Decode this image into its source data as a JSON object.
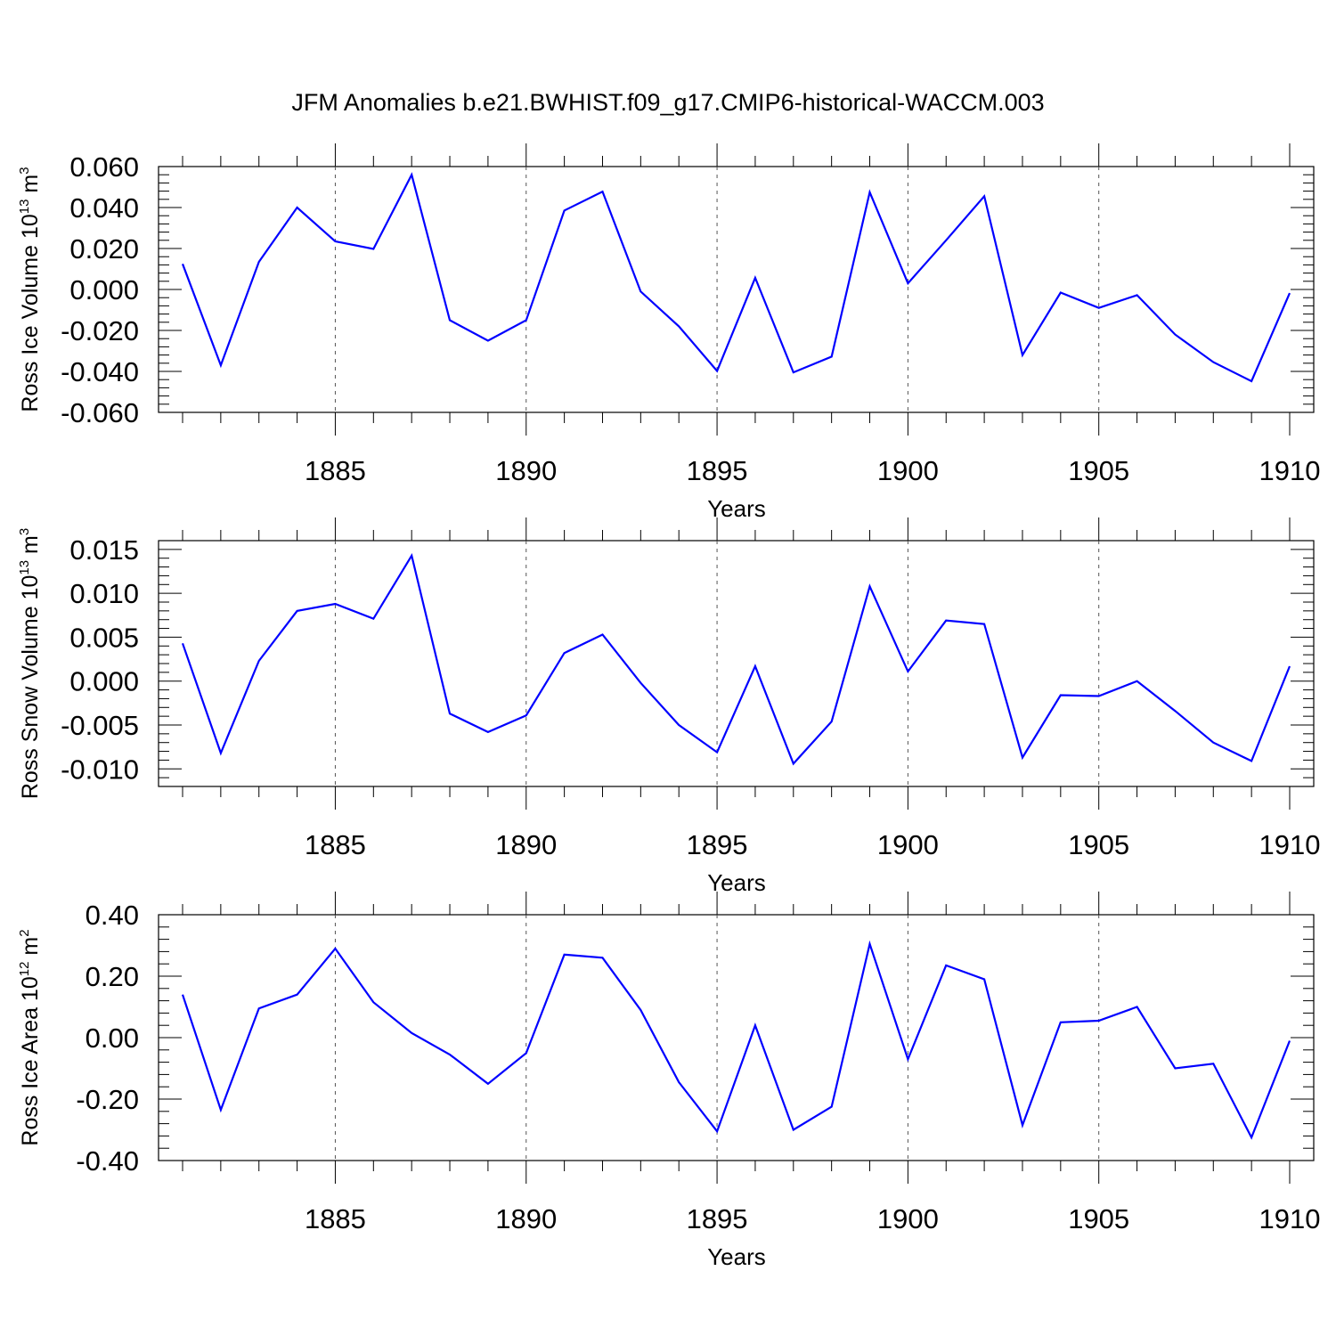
{
  "title": "JFM Anomalies b.e21.BWHIST.f09_g17.CMIP6-historical-WACCM.003",
  "line_color": "#0000ff",
  "chart_data": [
    {
      "type": "line",
      "ylabel": {
        "text": "Ross Ice Volume 10",
        "sup": "13",
        "unit": " m",
        "unit_sup": "3"
      },
      "xlabel": "Years",
      "xlim": [
        1881,
        1910
      ],
      "ylim": [
        -0.06,
        0.06
      ],
      "yticks": [
        -0.06,
        -0.04,
        -0.02,
        0.0,
        0.02,
        0.04,
        0.06
      ],
      "ytick_labels": [
        "-0.060",
        "-0.040",
        "-0.020",
        "0.000",
        "0.020",
        "0.040",
        "0.060"
      ],
      "xticks": [
        1885,
        1890,
        1895,
        1900,
        1905,
        1910
      ],
      "xtick_labels": [
        "1885",
        "1890",
        "1895",
        "1900",
        "1905",
        "1910"
      ],
      "grid": "vertical dashed at major x ticks",
      "series": [
        {
          "x": [
            1881,
            1882,
            1883,
            1884,
            1885,
            1886,
            1887,
            1888,
            1889,
            1890,
            1891,
            1892,
            1893,
            1894,
            1895,
            1896,
            1897,
            1898,
            1899,
            1900,
            1901,
            1902,
            1903,
            1904,
            1905,
            1906,
            1907,
            1908,
            1909,
            1910
          ],
          "values": [
            0.0125,
            -0.037,
            0.0135,
            0.04,
            0.0235,
            0.0198,
            0.056,
            -0.015,
            -0.025,
            -0.015,
            0.0385,
            0.0478,
            -0.001,
            -0.018,
            -0.0398,
            0.0057,
            -0.0405,
            -0.0328,
            0.0475,
            0.003,
            0.024,
            0.0455,
            -0.032,
            -0.0015,
            -0.009,
            -0.0028,
            -0.022,
            -0.0355,
            -0.0448,
            -0.0018
          ]
        }
      ]
    },
    {
      "type": "line",
      "ylabel": {
        "text": "Ross Snow Volume 10",
        "sup": "13",
        "unit": " m",
        "unit_sup": "3"
      },
      "xlabel": "Years",
      "xlim": [
        1881,
        1910
      ],
      "ylim": [
        -0.012,
        0.016
      ],
      "yticks": [
        -0.01,
        -0.005,
        0.0,
        0.005,
        0.01,
        0.015
      ],
      "ytick_labels": [
        "-0.010",
        "-0.005",
        "0.000",
        "0.005",
        "0.010",
        "0.015"
      ],
      "xticks": [
        1885,
        1890,
        1895,
        1900,
        1905,
        1910
      ],
      "xtick_labels": [
        "1885",
        "1890",
        "1895",
        "1900",
        "1905",
        "1910"
      ],
      "grid": "vertical dashed at major x ticks",
      "series": [
        {
          "x": [
            1881,
            1882,
            1883,
            1884,
            1885,
            1886,
            1887,
            1888,
            1889,
            1890,
            1891,
            1892,
            1893,
            1894,
            1895,
            1896,
            1897,
            1898,
            1899,
            1900,
            1901,
            1902,
            1903,
            1904,
            1905,
            1906,
            1907,
            1908,
            1909,
            1910
          ],
          "values": [
            0.0043,
            -0.0082,
            0.0023,
            0.008,
            0.0088,
            0.0071,
            0.0143,
            -0.0037,
            -0.0058,
            -0.0039,
            0.0032,
            0.0053,
            -0.0002,
            -0.005,
            -0.0081,
            0.0017,
            -0.0094,
            -0.0046,
            0.0108,
            0.0011,
            0.0069,
            0.0065,
            -0.0087,
            -0.0016,
            -0.0017,
            0.0,
            -0.0034,
            -0.007,
            -0.0091,
            0.0017
          ]
        }
      ]
    },
    {
      "type": "line",
      "ylabel": {
        "text": "Ross Ice Area 10",
        "sup": "12",
        "unit": " m",
        "unit_sup": "2"
      },
      "xlabel": "Years",
      "xlim": [
        1881,
        1910
      ],
      "ylim": [
        -0.4,
        0.4
      ],
      "yticks": [
        -0.4,
        -0.2,
        0.0,
        0.2,
        0.4
      ],
      "ytick_labels": [
        "-0.40",
        "-0.20",
        "0.00",
        "0.20",
        "0.40"
      ],
      "xticks": [
        1885,
        1890,
        1895,
        1900,
        1905,
        1910
      ],
      "xtick_labels": [
        "1885",
        "1890",
        "1895",
        "1900",
        "1905",
        "1910"
      ],
      "grid": "vertical dashed at major x ticks",
      "series": [
        {
          "x": [
            1881,
            1882,
            1883,
            1884,
            1885,
            1886,
            1887,
            1888,
            1889,
            1890,
            1891,
            1892,
            1893,
            1894,
            1895,
            1896,
            1897,
            1898,
            1899,
            1900,
            1901,
            1902,
            1903,
            1904,
            1905,
            1906,
            1907,
            1908,
            1909,
            1910
          ],
          "values": [
            0.14,
            -0.235,
            0.095,
            0.14,
            0.29,
            0.115,
            0.015,
            -0.055,
            -0.15,
            -0.05,
            0.27,
            0.26,
            0.09,
            -0.145,
            -0.305,
            0.04,
            -0.3,
            -0.225,
            0.305,
            -0.07,
            0.235,
            0.19,
            -0.285,
            0.05,
            0.055,
            0.1,
            -0.1,
            -0.085,
            -0.325,
            -0.01
          ]
        }
      ]
    }
  ]
}
